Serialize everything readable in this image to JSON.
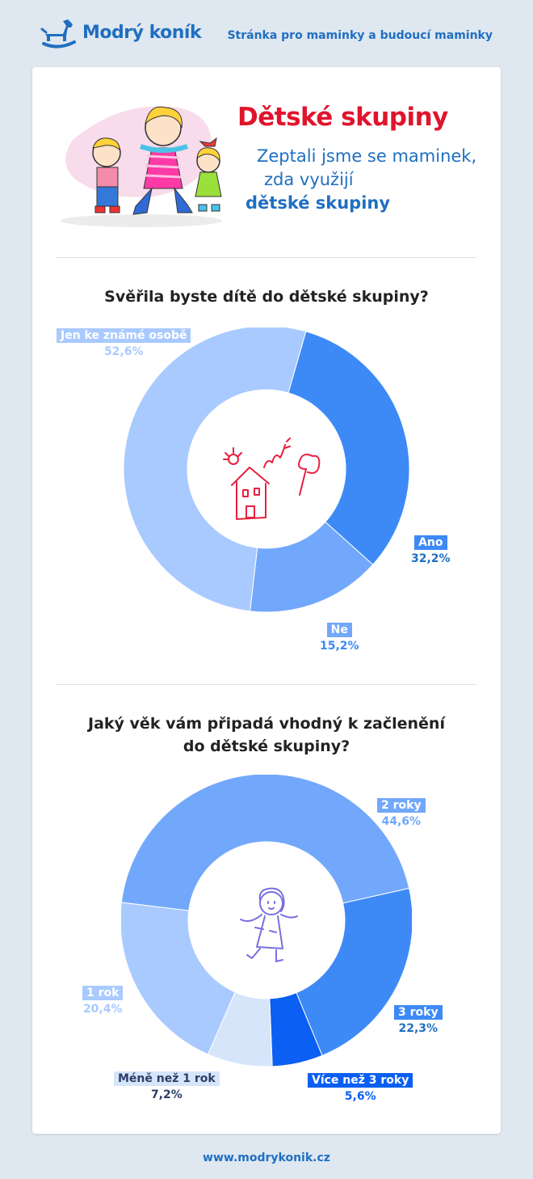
{
  "header": {
    "logo_text": "Modrý koník",
    "tagline": "Stránka pro maminky a budoucí maminky"
  },
  "hero": {
    "title": "Dětské skupiny",
    "subtitle_line1": "Zeptali jsme se maminek,",
    "subtitle_line2": "zda využijí",
    "subtitle_line3": "dětské skupiny"
  },
  "colors": {
    "accent_red": "#e0142d",
    "accent_blue": "#1f6fc1",
    "icon_red": "#e8203f",
    "icon_purple": "#7a6fe0"
  },
  "chart_data": [
    {
      "type": "pie",
      "title": "Svěřila byste dítě do dětské skupiny?",
      "donut": true,
      "center_icon": "house-drawing-icon",
      "slices": [
        {
          "label": "Ano",
          "value_text": "32,2%",
          "value": 32.2,
          "color": "#3d8af7",
          "text_color": "#1f6fc1"
        },
        {
          "label": "Ne",
          "value_text": "15,2%",
          "value": 15.2,
          "color": "#72a8fb",
          "text_color": "#3d8af7"
        },
        {
          "label": "Jen ke známé osobě",
          "value_text": "52,6%",
          "value": 52.6,
          "color": "#a9caff",
          "text_color": "#a9caff"
        }
      ]
    },
    {
      "type": "pie",
      "title": "Jaký věk vám připadá vhodný k začlenění do dětské skupiny?",
      "donut": true,
      "center_icon": "doll-drawing-icon",
      "slices": [
        {
          "label": "2 roky",
          "value_text": "44,6%",
          "value": 44.6,
          "color": "#72a8fb",
          "text_color": "#72a8fb"
        },
        {
          "label": "3 roky",
          "value_text": "22,3%",
          "value": 22.3,
          "color": "#3d8af7",
          "text_color": "#1f6fc1"
        },
        {
          "label": "Více než 3 roky",
          "value_text": "5,6%",
          "value": 5.6,
          "color": "#0b5ff2",
          "text_color": "#0b5ff2"
        },
        {
          "label": "Méně než 1 rok",
          "value_text": "7,2%",
          "value": 7.2,
          "color": "#d7e5fb",
          "text_color": "#2b3e66"
        },
        {
          "label": "1 rok",
          "value_text": "20,4%",
          "value": 20.4,
          "color": "#a9caff",
          "text_color": "#a9caff"
        }
      ]
    }
  ],
  "footer": {
    "url": "www.modrykonik.cz"
  }
}
